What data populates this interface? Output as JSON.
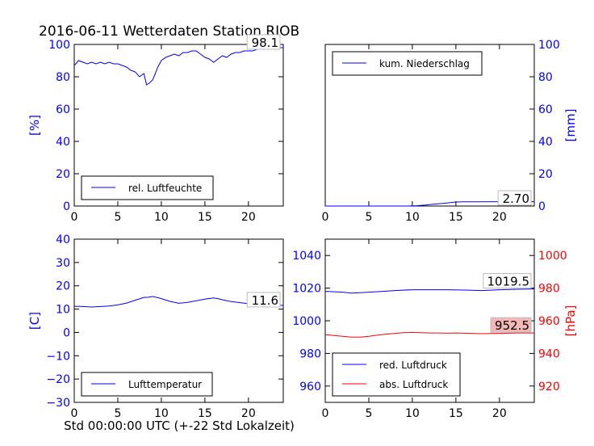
{
  "title": "2016-06-11 Wetterdaten Station RJOB",
  "xlabel": "Std 00:00:00 UTC (+-22 Std Lokalzeit)",
  "colors": {
    "blue": "#0000ff",
    "red": "#ff0000",
    "annotation_bg_red": "#f4b8b8"
  },
  "chart_data": [
    {
      "type": "line",
      "panel": "top-left",
      "ylabel": "[%]",
      "ylabel_color": "#0000ff",
      "xlim": [
        0,
        24
      ],
      "ylim": [
        0,
        100
      ],
      "xticks": [
        "0",
        "5",
        "10",
        "15",
        "20"
      ],
      "yticks": [
        "0",
        "20",
        "40",
        "60",
        "80",
        "100"
      ],
      "legend_position": "lower-left",
      "annotation": "98.1",
      "series": [
        {
          "name": "rel. Luftfeuchte",
          "color": "#0000ff",
          "x": [
            0,
            0.5,
            1,
            1.5,
            2,
            2.5,
            3,
            3.5,
            4,
            4.5,
            5,
            5.5,
            6,
            6.5,
            7,
            7.5,
            8,
            8.3,
            8.6,
            9,
            9.3,
            9.6,
            10,
            10.5,
            11,
            11.5,
            12,
            12.5,
            13,
            13.5,
            14,
            14.5,
            15,
            15.5,
            16,
            16.5,
            17,
            17.5,
            18,
            18.5,
            19,
            19.5,
            20,
            20.5,
            21,
            21.5,
            22,
            22.5,
            23,
            23.5,
            24
          ],
          "y": [
            87,
            90,
            89,
            88,
            89,
            88,
            89,
            88,
            89,
            88,
            88,
            87,
            86,
            84,
            83,
            80,
            82,
            75,
            76,
            78,
            82,
            86,
            90,
            92,
            93,
            94,
            93,
            95,
            95,
            96,
            96,
            94,
            92,
            91,
            89,
            91,
            93,
            92,
            94,
            95,
            95,
            96,
            96,
            96,
            97,
            97,
            97,
            98,
            98,
            98,
            98
          ]
        }
      ]
    },
    {
      "type": "line",
      "panel": "top-right",
      "ylabel": "[mm]",
      "ylabel_color": "#0000ff",
      "xlim": [
        0,
        24
      ],
      "ylim": [
        0,
        100
      ],
      "xticks": [
        "0",
        "5",
        "10",
        "15",
        "20"
      ],
      "yticks": [
        "0",
        "20",
        "40",
        "60",
        "80",
        "100"
      ],
      "legend_position": "upper-left",
      "annotation": "2.70",
      "series": [
        {
          "name": "kum. Niederschlag",
          "color": "#0000ff",
          "x": [
            0,
            9.5,
            10.5,
            11.5,
            12.5,
            13.5,
            14.5,
            15,
            16,
            18,
            20,
            22,
            24
          ],
          "y": [
            0,
            0,
            0.2,
            0.6,
            1.2,
            1.6,
            2.2,
            2.5,
            2.6,
            2.6,
            2.7,
            2.7,
            2.7
          ]
        }
      ]
    },
    {
      "type": "line",
      "panel": "bottom-left",
      "ylabel": "[C]",
      "ylabel_color": "#0000ff",
      "xlim": [
        0,
        24
      ],
      "ylim": [
        -30,
        40
      ],
      "xticks": [
        "0",
        "5",
        "10",
        "15",
        "20"
      ],
      "yticks": [
        "−30",
        "−20",
        "−10",
        "0",
        "10",
        "20",
        "30",
        "40"
      ],
      "legend_position": "lower-left",
      "annotation": "11.6",
      "series": [
        {
          "name": "Lufttemperatur",
          "color": "#0000ff",
          "x": [
            0,
            1,
            2,
            3,
            4,
            5,
            6,
            7,
            8,
            8.5,
            9,
            9.5,
            10,
            11,
            12,
            13,
            14,
            15,
            16,
            16.5,
            17,
            18,
            19,
            20,
            21,
            22,
            23,
            24
          ],
          "y": [
            11.2,
            11.1,
            10.9,
            11.1,
            11.3,
            11.8,
            12.6,
            13.8,
            15,
            15.1,
            15.4,
            15,
            14.5,
            13.3,
            12.5,
            12.9,
            13.6,
            14.3,
            14.8,
            14.5,
            14,
            13.2,
            12.8,
            12.3,
            12.1,
            11.9,
            11.7,
            11.6
          ]
        }
      ]
    },
    {
      "type": "line",
      "panel": "bottom-right",
      "ylabel": "[hPa]",
      "ylabel_color": "#ff0000",
      "xlim": [
        0,
        24
      ],
      "ylim_left": [
        950,
        1050
      ],
      "ylim_right": [
        910,
        1010
      ],
      "xticks": [
        "0",
        "5",
        "10",
        "15",
        "20"
      ],
      "yticks_left": [
        "960",
        "980",
        "1000",
        "1020",
        "1040"
      ],
      "yticks_right": [
        "920",
        "940",
        "960",
        "980",
        "1000"
      ],
      "legend_position": "lower-left",
      "annotations": [
        "1019.5",
        "952.5"
      ],
      "series": [
        {
          "name": "red. Luftdruck",
          "color": "#0000ff",
          "axis": "left",
          "x": [
            0,
            2,
            3,
            4,
            6,
            8,
            10,
            12,
            14,
            16,
            18,
            20,
            22,
            24
          ],
          "y": [
            1018,
            1017.5,
            1017,
            1017.2,
            1017.8,
            1018.5,
            1019,
            1019,
            1019,
            1018.8,
            1018.5,
            1019,
            1019.3,
            1019.5
          ]
        },
        {
          "name": "abs. Luftdruck",
          "color": "#ff0000",
          "axis": "right",
          "x": [
            0,
            1,
            2,
            3,
            4,
            5,
            6,
            7,
            8,
            9,
            10,
            11,
            12,
            13,
            14,
            15,
            16,
            17,
            18,
            19,
            20,
            21,
            22,
            23,
            24
          ],
          "y": [
            951.5,
            951,
            950.5,
            950,
            950,
            950.5,
            951.2,
            951.8,
            952.3,
            952.7,
            952.8,
            952.7,
            952.5,
            952.5,
            952.4,
            952.5,
            952.4,
            952.2,
            952.1,
            952.2,
            952.3,
            952.4,
            952.5,
            952.5,
            952.5
          ]
        }
      ]
    }
  ]
}
